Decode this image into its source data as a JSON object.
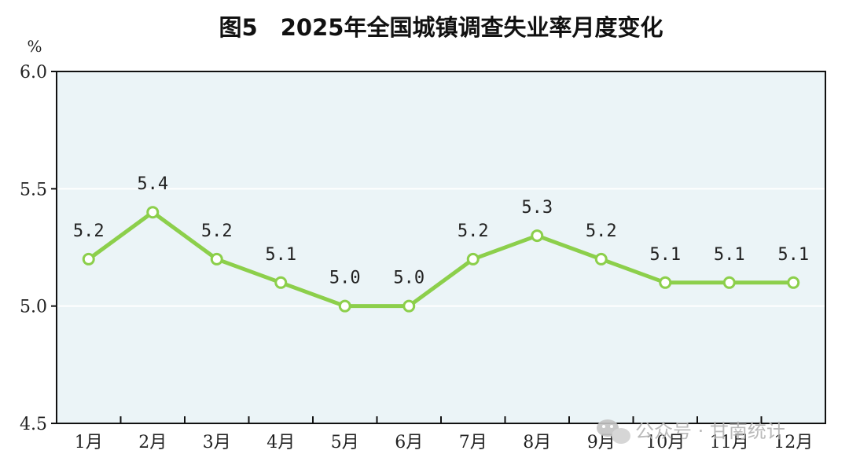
{
  "chart_data": {
    "type": "line",
    "title": "图5　2025年全国城镇调查失业率月度变化",
    "ylabel": "%",
    "xlabel": "",
    "categories": [
      "1月",
      "2月",
      "3月",
      "4月",
      "5月",
      "6月",
      "7月",
      "8月",
      "9月",
      "10月",
      "11月",
      "12月"
    ],
    "series": [
      {
        "values": [
          5.2,
          5.4,
          5.2,
          5.1,
          5.0,
          5.0,
          5.2,
          5.3,
          5.2,
          5.1,
          5.1,
          5.1
        ]
      }
    ],
    "data_labels": [
      "5.2",
      "5.4",
      "5.2",
      "5.1",
      "5.0",
      "5.0",
      "5.2",
      "5.3",
      "5.2",
      "5.1",
      "5.1",
      "5.1"
    ],
    "ylim": [
      4.5,
      6.0
    ],
    "yticks": [
      4.5,
      5.0,
      5.5,
      6.0
    ],
    "ytick_labels": [
      "4.5",
      "5.0",
      "5.5",
      "6.0"
    ],
    "grid": true,
    "legend": "none"
  },
  "colors": {
    "line": "#8ccf4b",
    "plot_bg": "#ebf4f7",
    "gridline": "#ffffff",
    "axis": "#111111"
  },
  "watermark": {
    "text": "公众号 · 甘南统计",
    "icon": "wechat-icon"
  }
}
